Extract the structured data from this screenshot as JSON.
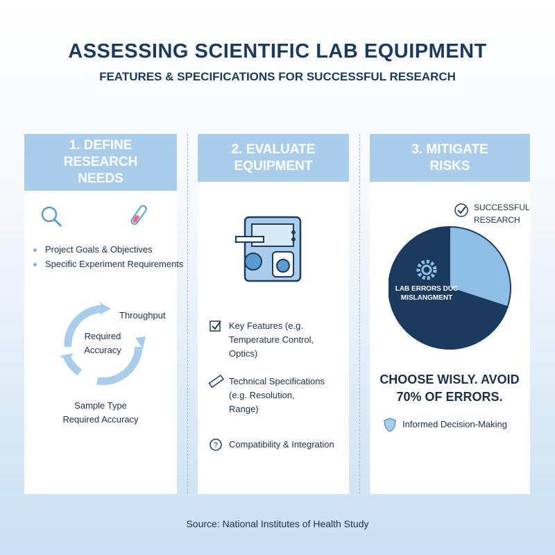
{
  "header": {
    "title": "ASSESSING SCIENTIFIC LAB EQUIPMENT",
    "subtitle": "FEATURES & SPECIFICATIONS FOR SUCCESSFUL RESEARCH"
  },
  "columns": [
    {
      "heading": "1. DEFINE RESEARCH NEEDS",
      "bullets": [
        "Project Goals & Objectives",
        "Specific Experiment Requirements"
      ],
      "cycle": {
        "outer_label": "Throughput",
        "inner_label": "Required Accuracy"
      },
      "notes": [
        "Sample Type",
        "Required Accuracy"
      ]
    },
    {
      "heading": "2. EVALUATE EQUIPMENT",
      "items": [
        "Key Features (e.g. Temperature Control, Optics)",
        "Technical Specifications (e.g. Resolution, Range)",
        "Compatibility & Integration"
      ]
    },
    {
      "heading": "3. MITIGATE RISKS",
      "callout": "CHOOSE WISLY. AVOID 70% OF ERRORS.",
      "footer_item": "Informed Decision-Making"
    }
  ],
  "chart_data": {
    "type": "pie",
    "categories": [
      "SUCCESSFUL RESEARCH",
      "LAB ERRORS DUC MISLANGMENT"
    ],
    "values": [
      30,
      70
    ],
    "colors": [
      "#8fbfe6",
      "#1b3a5e"
    ]
  },
  "source": "Source: National Institutes of Health Study"
}
